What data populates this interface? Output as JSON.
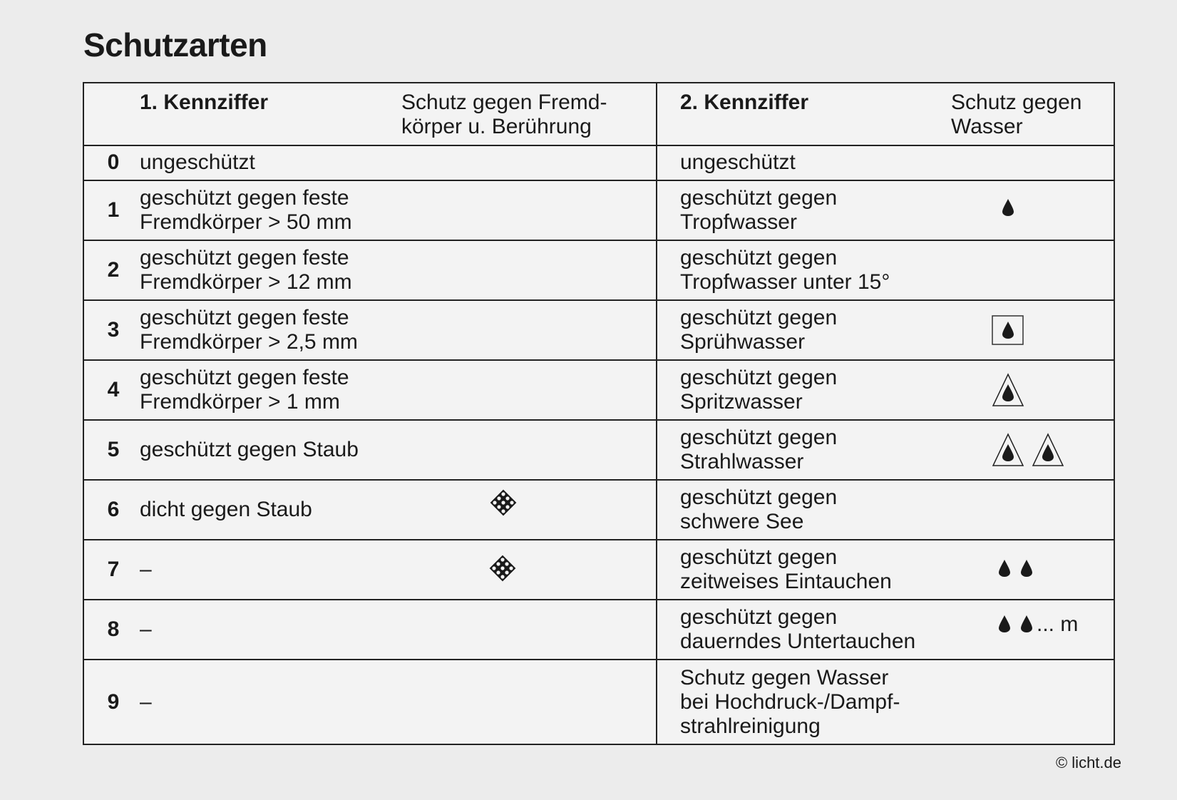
{
  "title": "Schutzarten",
  "header": {
    "col1_label": "1. Kennziffer",
    "col1_desc": "Schutz gegen Fremd-\nkörper u. Berührung",
    "col2_label": "2. Kennziffer",
    "col2_desc": "Schutz gegen\nWasser"
  },
  "rows": [
    {
      "num": "0",
      "first": "ungeschützt",
      "first_icon": "",
      "second": "ungeschützt",
      "second_icon": ""
    },
    {
      "num": "1",
      "first": "geschützt gegen feste\nFremdkörper > 50 mm",
      "first_icon": "",
      "second": "geschützt gegen\nTropfwasser",
      "second_icon": "drop-icon"
    },
    {
      "num": "2",
      "first": "geschützt gegen feste\nFremdkörper > 12 mm",
      "first_icon": "",
      "second": "geschützt gegen\nTropfwasser unter 15°",
      "second_icon": ""
    },
    {
      "num": "3",
      "first": "geschützt gegen feste\nFremdkörper > 2,5 mm",
      "first_icon": "",
      "second": "geschützt gegen\nSprühwasser",
      "second_icon": "drop-in-square-icon"
    },
    {
      "num": "4",
      "first": "geschützt gegen feste\nFremdkörper > 1 mm",
      "first_icon": "",
      "second": "geschützt gegen\nSpritzwasser",
      "second_icon": "drop-in-triangle-icon"
    },
    {
      "num": "5",
      "first": "geschützt gegen Staub",
      "first_icon": "",
      "second": "geschützt gegen\nStrahlwasser",
      "second_icon": "two-drops-in-triangles-icon"
    },
    {
      "num": "6",
      "first": "dicht gegen Staub",
      "first_icon": "dust-grid-icon",
      "second": "geschützt gegen\nschwere See",
      "second_icon": ""
    },
    {
      "num": "7",
      "first": "–",
      "first_icon": "dust-grid-solid-icon",
      "second": "geschützt gegen\nzeitweises Eintauchen",
      "second_icon": "two-drops-icon"
    },
    {
      "num": "8",
      "first": "–",
      "first_icon": "",
      "second": "geschützt gegen\ndauerndes Untertauchen",
      "second_icon": "two-drops-depth-icon",
      "second_icon_text": "... m"
    },
    {
      "num": "9",
      "first": "–",
      "first_icon": "",
      "second": "Schutz gegen Wasser\nbei Hochdruck-/Dampf-\nstrahlreinigung",
      "second_icon": ""
    }
  ],
  "copyright": "© licht.de"
}
